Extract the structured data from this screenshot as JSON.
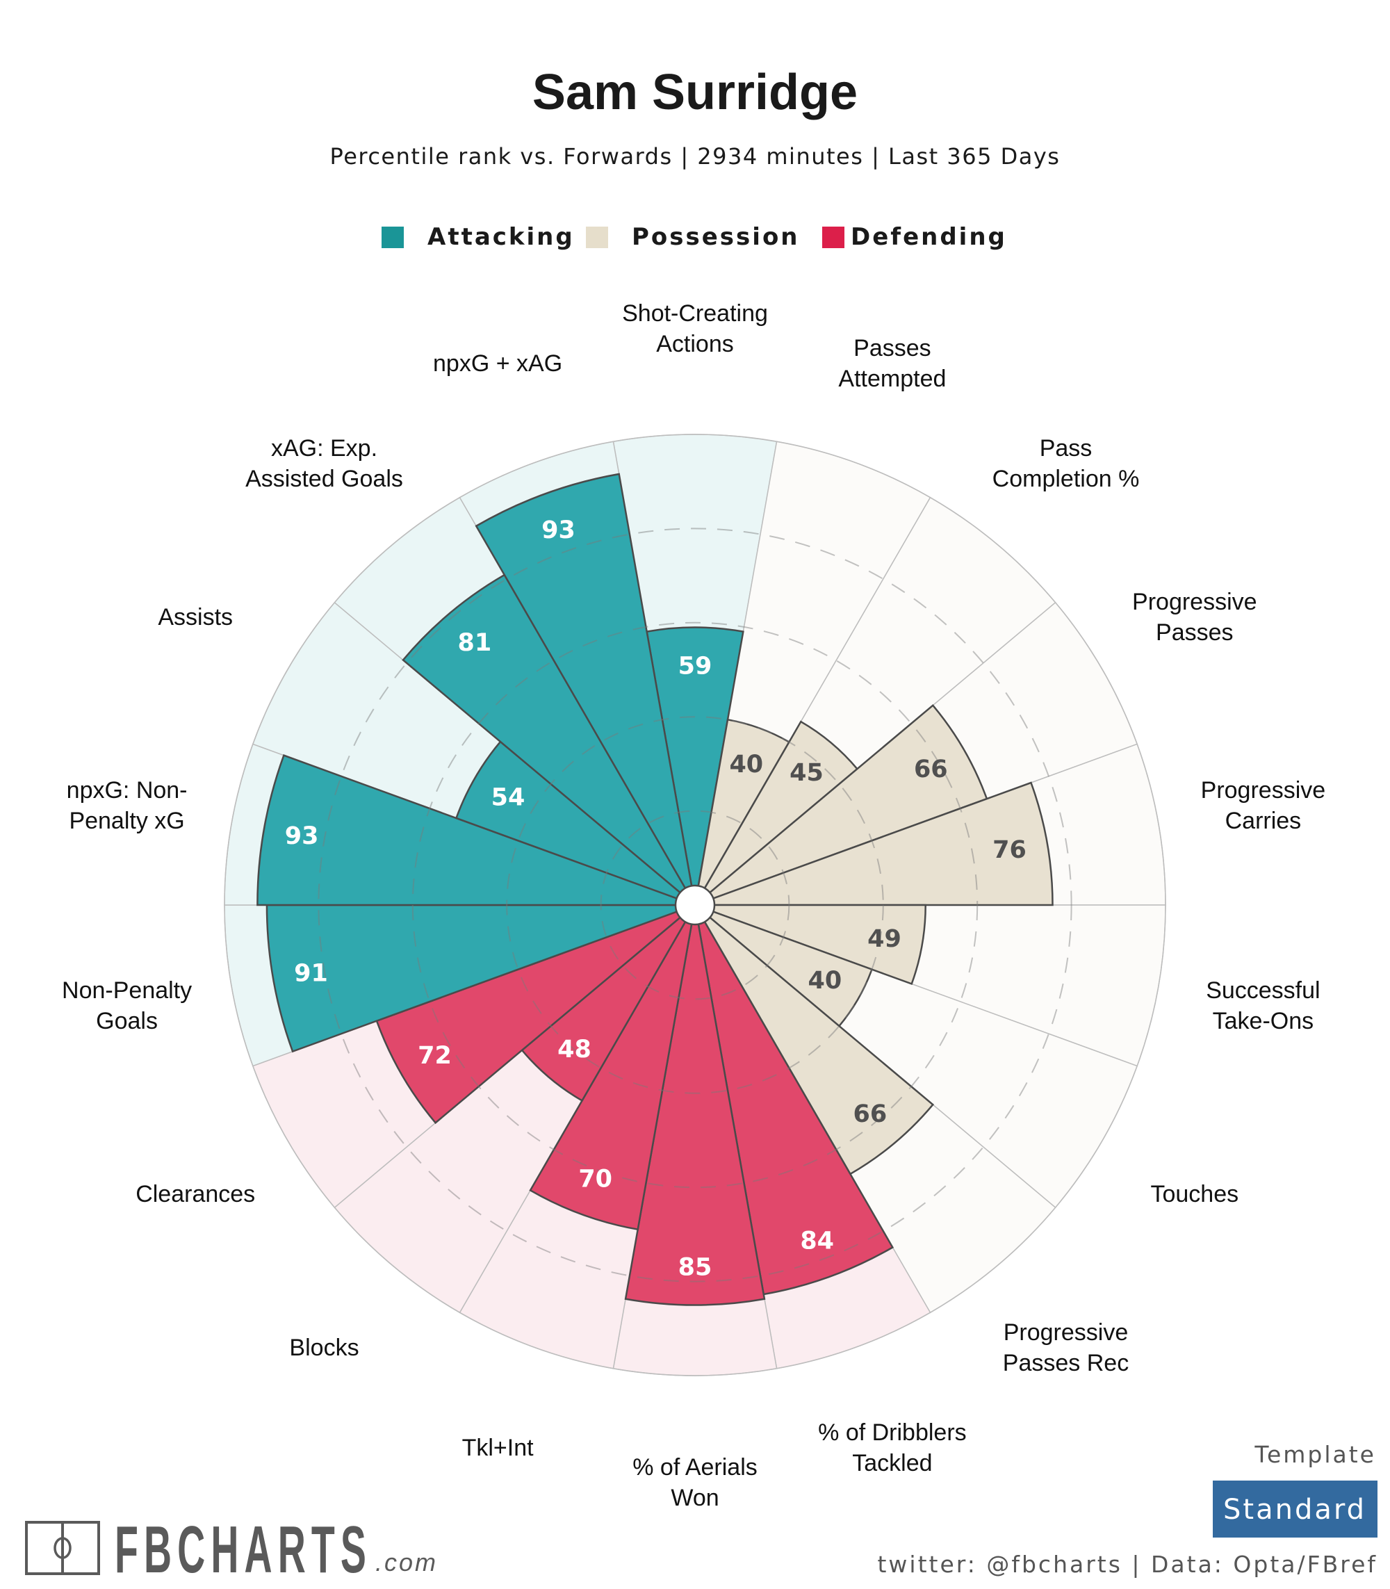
{
  "header": {
    "title": "Sam Surridge",
    "subtitle": "Percentile rank vs. Forwards | 2934 minutes | Last 365 Days"
  },
  "colors": {
    "Attacking": {
      "bar": "#30A8AE",
      "bg": "#EAF6F6",
      "legend": "#1A9597",
      "text": "#ffffff"
    },
    "Possession": {
      "bar": "#E8E1D1",
      "bg": "#FCFBF9",
      "legend": "#E6DECB",
      "text": "#505050"
    },
    "Defending": {
      "bar": "#E1486B",
      "bg": "#FBEDF0",
      "legend": "#DC1F4A",
      "text": "#ffffff"
    }
  },
  "legend": [
    {
      "label": "Attacking",
      "group": "Attacking"
    },
    {
      "label": "Possession",
      "group": "Possession"
    },
    {
      "label": "Defending",
      "group": "Defending"
    }
  ],
  "chart_data": {
    "type": "polar-bar",
    "title": "Sam Surridge",
    "subtitle": "Percentile rank vs. Forwards | 2934 minutes | Last 365 Days",
    "rlim": [
      0,
      100
    ],
    "grid_rings": [
      20,
      40,
      60,
      80
    ],
    "legend_position": "top-center",
    "categories": [
      {
        "label": [
          "Shot-Creating",
          "Actions"
        ],
        "value": 59,
        "group": "Attacking"
      },
      {
        "label": [
          "Passes",
          "Attempted"
        ],
        "value": 40,
        "group": "Possession"
      },
      {
        "label": [
          "Pass",
          "Completion %"
        ],
        "value": 45,
        "group": "Possession"
      },
      {
        "label": [
          "Progressive",
          "Passes"
        ],
        "value": 66,
        "group": "Possession"
      },
      {
        "label": [
          "Progressive",
          "Carries"
        ],
        "value": 76,
        "group": "Possession"
      },
      {
        "label": [
          "Successful",
          "Take-Ons"
        ],
        "value": 49,
        "group": "Possession"
      },
      {
        "label": [
          "Touches"
        ],
        "value": 40,
        "group": "Possession"
      },
      {
        "label": [
          "Progressive",
          "Passes Rec"
        ],
        "value": 66,
        "group": "Possession"
      },
      {
        "label": [
          "% of Dribblers",
          "Tackled"
        ],
        "value": 84,
        "group": "Defending"
      },
      {
        "label": [
          "% of Aerials",
          "Won"
        ],
        "value": 85,
        "group": "Defending"
      },
      {
        "label": [
          "Tkl+Int"
        ],
        "value": 70,
        "group": "Defending"
      },
      {
        "label": [
          "Blocks"
        ],
        "value": 48,
        "group": "Defending"
      },
      {
        "label": [
          "Clearances"
        ],
        "value": 72,
        "group": "Defending"
      },
      {
        "label": [
          "Non-Penalty",
          "Goals"
        ],
        "value": 91,
        "group": "Attacking"
      },
      {
        "label": [
          "npxG: Non-",
          "Penalty xG"
        ],
        "value": 93,
        "group": "Attacking"
      },
      {
        "label": [
          "Assists"
        ],
        "value": 54,
        "group": "Attacking"
      },
      {
        "label": [
          "xAG: Exp.",
          "Assisted Goals"
        ],
        "value": 81,
        "group": "Attacking"
      },
      {
        "label": [
          "npxG + xAG"
        ],
        "value": 93,
        "group": "Attacking"
      }
    ]
  },
  "footer": {
    "logo_text": "FBCHARTS",
    "logo_suffix": ".com",
    "template_label": "Template",
    "template_value": "Standard",
    "template_color": "#336A9F",
    "credit": "twitter: @fbcharts | Data: Opta/FBref"
  }
}
